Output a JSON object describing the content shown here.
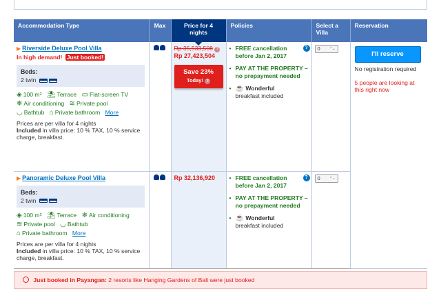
{
  "top_strip": "",
  "table": {
    "headers": {
      "accommodation": "Accommodation Type",
      "max": "Max",
      "price": "Price for 4 nights",
      "policies": "Policies",
      "select": "Select a Villa",
      "reservation": "Reservation"
    },
    "rooms": [
      {
        "name": "Riverside Deluxe Pool Villa",
        "demand": "In high demand!",
        "badge": "Just booked!",
        "beds_label": "Beds:",
        "beds_value": "2 twin",
        "facilities": [
          {
            "icon": "area-icon",
            "label": "100 m²"
          },
          {
            "icon": "terrace-icon",
            "label": "Terrace"
          },
          {
            "icon": "tv-icon",
            "label": "Flat-screen TV"
          },
          {
            "icon": "snowflake-icon",
            "label": "Air conditioning"
          },
          {
            "icon": "pool-icon",
            "label": "Private pool"
          },
          {
            "icon": "bathtub-icon",
            "label": "Bathtub"
          },
          {
            "icon": "shower-icon",
            "label": "Private bathroom"
          }
        ],
        "more": "More",
        "note_line1": "Prices are per villa for 4 nights",
        "note_included_label": "Included",
        "note_included_text": " in villa price: 10 % TAX, 10 % service charge, breakfast.",
        "price_old": "Rp 35,533,508",
        "price_now": "Rp 27,423,504",
        "save_label": "Save 23%",
        "save_today": "Today!",
        "policies": [
          {
            "title": "FREE cancellation before Jan 2, 2017"
          },
          {
            "title": "PAY AT THE PROPERTY – no prepayment needed"
          }
        ],
        "breakfast_title": "Wonderful",
        "breakfast_sub": "breakfast included",
        "select_value": "0"
      },
      {
        "name": "Panoramic Deluxe Pool Villa",
        "beds_label": "Beds:",
        "beds_value": "2 twin",
        "facilities": [
          {
            "icon": "area-icon",
            "label": "100 m²"
          },
          {
            "icon": "terrace-icon",
            "label": "Terrace"
          },
          {
            "icon": "snowflake-icon",
            "label": "Air conditioning"
          },
          {
            "icon": "pool-icon",
            "label": "Private pool"
          },
          {
            "icon": "bathtub-icon",
            "label": "Bathtub"
          },
          {
            "icon": "shower-icon",
            "label": "Private bathroom"
          }
        ],
        "more": "More",
        "note_line1": "Prices are per villa for 4 nights",
        "note_included_label": "Included",
        "note_included_text": " in villa price: 10 % TAX, 10 % service charge, breakfast.",
        "price_now": "Rp 32,136,920",
        "policies": [
          {
            "title": "FREE cancellation before Jan 2, 2017"
          },
          {
            "title": "PAY AT THE PROPERTY – no prepayment needed"
          }
        ],
        "breakfast_title": "Wonderful",
        "breakfast_sub": "breakfast included",
        "select_value": "0"
      }
    ],
    "reserve_button": "I'll reserve",
    "no_registration": "No registration required",
    "looking": "5 people are looking at this right now"
  },
  "banner": {
    "bold": "Just booked in Payangan:",
    "text": " 2 resorts like Hanging Gardens of Bali were just booked"
  },
  "colors": {
    "header_blue": "#4b75b9",
    "price_header": "#003580",
    "accent_red": "#e0201c",
    "green": "#1f7a1f",
    "link_blue": "#0071c2",
    "button_blue": "#0896ff"
  }
}
